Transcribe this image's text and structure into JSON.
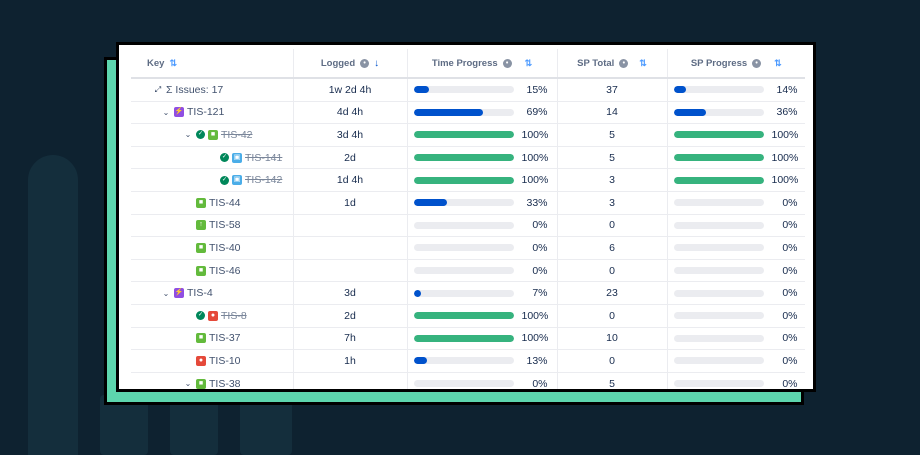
{
  "colors": {
    "background": "#0e2230",
    "frame": "#5dd6ae",
    "progress_partial": "#0052cc",
    "progress_complete": "#36b37e",
    "track": "#ebecf0"
  },
  "columns": {
    "key": "Key",
    "logged": "Logged",
    "time_progress": "Time Progress",
    "sp_total": "SP Total",
    "sp_progress": "SP Progress"
  },
  "rows": [
    {
      "level": 0,
      "expander": "none",
      "status": "",
      "type": "sum",
      "key": "Σ Issues: 17",
      "strike": false,
      "logged": "1w 2d 4h",
      "time_pct": 15,
      "time_label": "15%",
      "sp_total": "37",
      "sp_pct": 14,
      "sp_label": "14%"
    },
    {
      "level": 1,
      "expander": "open",
      "status": "",
      "type": "epic",
      "key": "TIS-121",
      "strike": false,
      "logged": "4d 4h",
      "time_pct": 69,
      "time_label": "69%",
      "sp_total": "14",
      "sp_pct": 36,
      "sp_label": "36%"
    },
    {
      "level": 2,
      "expander": "open",
      "status": "done",
      "type": "story",
      "key": "TIS-42",
      "strike": true,
      "logged": "3d 4h",
      "time_pct": 100,
      "time_label": "100%",
      "sp_total": "5",
      "sp_pct": 100,
      "sp_label": "100%"
    },
    {
      "level": 3,
      "expander": "none",
      "status": "done",
      "type": "subtask",
      "key": "TIS-141",
      "strike": true,
      "logged": "2d",
      "time_pct": 100,
      "time_label": "100%",
      "sp_total": "5",
      "sp_pct": 100,
      "sp_label": "100%"
    },
    {
      "level": 3,
      "expander": "none",
      "status": "done",
      "type": "subtask",
      "key": "TIS-142",
      "strike": true,
      "logged": "1d 4h",
      "time_pct": 100,
      "time_label": "100%",
      "sp_total": "3",
      "sp_pct": 100,
      "sp_label": "100%"
    },
    {
      "level": 2,
      "expander": "none",
      "status": "",
      "type": "story",
      "key": "TIS-44",
      "strike": false,
      "logged": "1d",
      "time_pct": 33,
      "time_label": "33%",
      "sp_total": "3",
      "sp_pct": 0,
      "sp_label": "0%"
    },
    {
      "level": 2,
      "expander": "none",
      "status": "",
      "type": "improve",
      "key": "TIS-58",
      "strike": false,
      "logged": "",
      "time_pct": 0,
      "time_label": "0%",
      "sp_total": "0",
      "sp_pct": 0,
      "sp_label": "0%"
    },
    {
      "level": 2,
      "expander": "none",
      "status": "",
      "type": "story",
      "key": "TIS-40",
      "strike": false,
      "logged": "",
      "time_pct": 0,
      "time_label": "0%",
      "sp_total": "6",
      "sp_pct": 0,
      "sp_label": "0%"
    },
    {
      "level": 2,
      "expander": "none",
      "status": "",
      "type": "story",
      "key": "TIS-46",
      "strike": false,
      "logged": "",
      "time_pct": 0,
      "time_label": "0%",
      "sp_total": "0",
      "sp_pct": 0,
      "sp_label": "0%"
    },
    {
      "level": 1,
      "expander": "open",
      "status": "",
      "type": "epic",
      "key": "TIS-4",
      "strike": false,
      "logged": "3d",
      "time_pct": 7,
      "time_label": "7%",
      "sp_total": "23",
      "sp_pct": 0,
      "sp_label": "0%"
    },
    {
      "level": 2,
      "expander": "none",
      "status": "done",
      "type": "bug",
      "key": "TIS-8",
      "strike": true,
      "logged": "2d",
      "time_pct": 100,
      "time_label": "100%",
      "sp_total": "0",
      "sp_pct": 0,
      "sp_label": "0%"
    },
    {
      "level": 2,
      "expander": "none",
      "status": "",
      "type": "story",
      "key": "TIS-37",
      "strike": false,
      "logged": "7h",
      "time_pct": 100,
      "time_label": "100%",
      "sp_total": "10",
      "sp_pct": 0,
      "sp_label": "0%"
    },
    {
      "level": 2,
      "expander": "none",
      "status": "",
      "type": "bug",
      "key": "TIS-10",
      "strike": false,
      "logged": "1h",
      "time_pct": 13,
      "time_label": "13%",
      "sp_total": "0",
      "sp_pct": 0,
      "sp_label": "0%"
    },
    {
      "level": 2,
      "expander": "open",
      "status": "",
      "type": "story",
      "key": "TIS-38",
      "strike": false,
      "logged": "",
      "time_pct": 0,
      "time_label": "0%",
      "sp_total": "5",
      "sp_pct": 0,
      "sp_label": "0%"
    }
  ]
}
